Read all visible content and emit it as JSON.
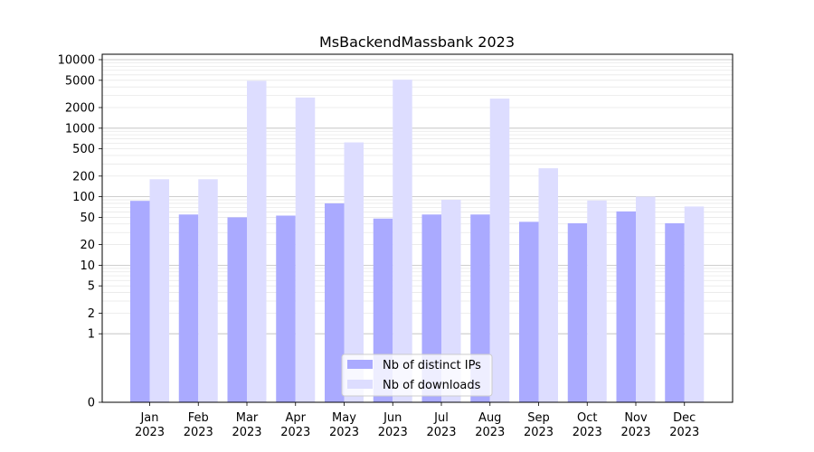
{
  "chart_data": {
    "type": "bar",
    "title": "MsBackendMassbank 2023",
    "xlabel": "",
    "ylabel": "",
    "yscale": "symlog",
    "ylim": [
      0,
      12000
    ],
    "ytick_values": [
      0,
      1,
      2,
      5,
      10,
      20,
      50,
      100,
      200,
      500,
      1000,
      2000,
      5000,
      10000
    ],
    "ytick_labels": [
      "0",
      "1",
      "2",
      "5",
      "10",
      "20",
      "50",
      "100",
      "200",
      "500",
      "1000",
      "2000",
      "5000",
      "10000"
    ],
    "categories": [
      [
        "Jan",
        "2023"
      ],
      [
        "Feb",
        "2023"
      ],
      [
        "Mar",
        "2023"
      ],
      [
        "Apr",
        "2023"
      ],
      [
        "May",
        "2023"
      ],
      [
        "Jun",
        "2023"
      ],
      [
        "Jul",
        "2023"
      ],
      [
        "Aug",
        "2023"
      ],
      [
        "Sep",
        "2023"
      ],
      [
        "Oct",
        "2023"
      ],
      [
        "Nov",
        "2023"
      ],
      [
        "Dec",
        "2023"
      ]
    ],
    "series": [
      {
        "name": "Nb of distinct IPs",
        "color": "#aaaaff",
        "values": [
          87,
          55,
          50,
          53,
          80,
          48,
          55,
          55,
          43,
          41,
          61,
          41
        ]
      },
      {
        "name": "Nb of downloads",
        "color": "#ddddff",
        "values": [
          180,
          180,
          4900,
          2800,
          620,
          5100,
          90,
          2700,
          260,
          88,
          100,
          72
        ]
      }
    ],
    "grid": true,
    "legend_position": "lower center"
  }
}
